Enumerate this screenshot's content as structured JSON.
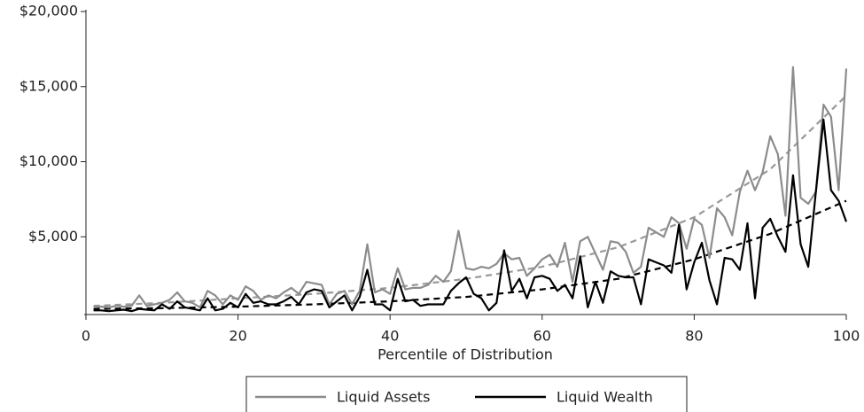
{
  "chart_data": {
    "type": "line",
    "xlabel": "Percentile of Distribution",
    "x": [
      1,
      2,
      3,
      4,
      5,
      6,
      7,
      8,
      9,
      10,
      11,
      12,
      13,
      14,
      15,
      16,
      17,
      18,
      19,
      20,
      21,
      22,
      23,
      24,
      25,
      26,
      27,
      28,
      29,
      30,
      31,
      32,
      33,
      34,
      35,
      36,
      37,
      38,
      39,
      40,
      41,
      42,
      43,
      44,
      45,
      46,
      47,
      48,
      49,
      50,
      51,
      52,
      53,
      54,
      55,
      56,
      57,
      58,
      59,
      60,
      61,
      62,
      63,
      64,
      65,
      66,
      67,
      68,
      69,
      70,
      71,
      72,
      73,
      74,
      75,
      76,
      77,
      78,
      79,
      80,
      81,
      82,
      83,
      84,
      85,
      86,
      87,
      88,
      89,
      90,
      91,
      92,
      93,
      94,
      95,
      96,
      97,
      98,
      99,
      100
    ],
    "xlim": [
      0,
      100
    ],
    "xticks": [
      0,
      20,
      40,
      60,
      80,
      100
    ],
    "ylim": [
      0,
      20000
    ],
    "yticks": [
      {
        "value": 5000,
        "label": "$5,000"
      },
      {
        "value": 10000,
        "label": "$10,000"
      },
      {
        "value": 15000,
        "label": "$15,000"
      },
      {
        "value": 20000,
        "label": "$20,000"
      }
    ],
    "legend": "bottom",
    "series": [
      {
        "name": "Liquid Assets",
        "color": "#8c8c8c",
        "values": [
          300,
          350,
          300,
          400,
          350,
          400,
          1100,
          400,
          500,
          600,
          800,
          1300,
          700,
          600,
          300,
          1400,
          1100,
          500,
          1100,
          800,
          1700,
          1400,
          800,
          1100,
          900,
          1300,
          1600,
          1200,
          2000,
          1900,
          1800,
          500,
          1200,
          1400,
          500,
          1400,
          4500,
          1300,
          1500,
          1200,
          2900,
          1500,
          1600,
          1600,
          1800,
          2400,
          2000,
          2700,
          5400,
          2900,
          2800,
          3000,
          2900,
          3200,
          3900,
          3500,
          3600,
          2400,
          2900,
          3500,
          3800,
          3000,
          4600,
          2000,
          4700,
          5000,
          3900,
          2800,
          4700,
          4600,
          4000,
          2600,
          3000,
          5600,
          5300,
          5000,
          6300,
          5900,
          4200,
          6200,
          5800,
          3600,
          6900,
          6300,
          5100,
          8000,
          9400,
          8100,
          9300,
          11700,
          10500,
          6400,
          16300,
          7600,
          7200,
          8000,
          13800,
          13000,
          8100,
          16200
        ]
      },
      {
        "name": "Liquid Wealth",
        "color": "#000000",
        "values": [
          100,
          100,
          50,
          100,
          150,
          50,
          200,
          150,
          100,
          500,
          200,
          700,
          300,
          200,
          100,
          900,
          100,
          200,
          600,
          300,
          1200,
          600,
          700,
          500,
          500,
          700,
          1000,
          500,
          1300,
          1500,
          1400,
          300,
          700,
          1100,
          100,
          1000,
          2800,
          500,
          500,
          100,
          2200,
          700,
          800,
          400,
          500,
          500,
          500,
          1400,
          1900,
          2300,
          1200,
          900,
          100,
          600,
          4100,
          1400,
          2200,
          900,
          2300,
          2400,
          2200,
          1400,
          1800,
          900,
          3700,
          300,
          2000,
          600,
          2700,
          2400,
          2300,
          2300,
          500,
          3500,
          3300,
          3100,
          2600,
          5800,
          1500,
          3300,
          4600,
          2100,
          500,
          3600,
          3500,
          2800,
          5900,
          900,
          5600,
          6200,
          5000,
          4000,
          9100,
          4500,
          3000,
          8000,
          12800,
          8100,
          7400,
          6000
        ]
      },
      {
        "color": "#999999",
        "dashed": true,
        "x": [
          1,
          10,
          20,
          30,
          40,
          50,
          60,
          70,
          80,
          90,
          100
        ],
        "values": [
          400,
          600,
          900,
          1200,
          1600,
          2200,
          3000,
          4300,
          6300,
          9500,
          14400
        ]
      },
      {
        "color": "#000000",
        "dashed": true,
        "x": [
          1,
          10,
          20,
          30,
          40,
          50,
          60,
          70,
          80,
          90,
          100
        ],
        "values": [
          200,
          250,
          350,
          500,
          700,
          1000,
          1500,
          2200,
          3500,
          5200,
          7400
        ]
      }
    ]
  }
}
